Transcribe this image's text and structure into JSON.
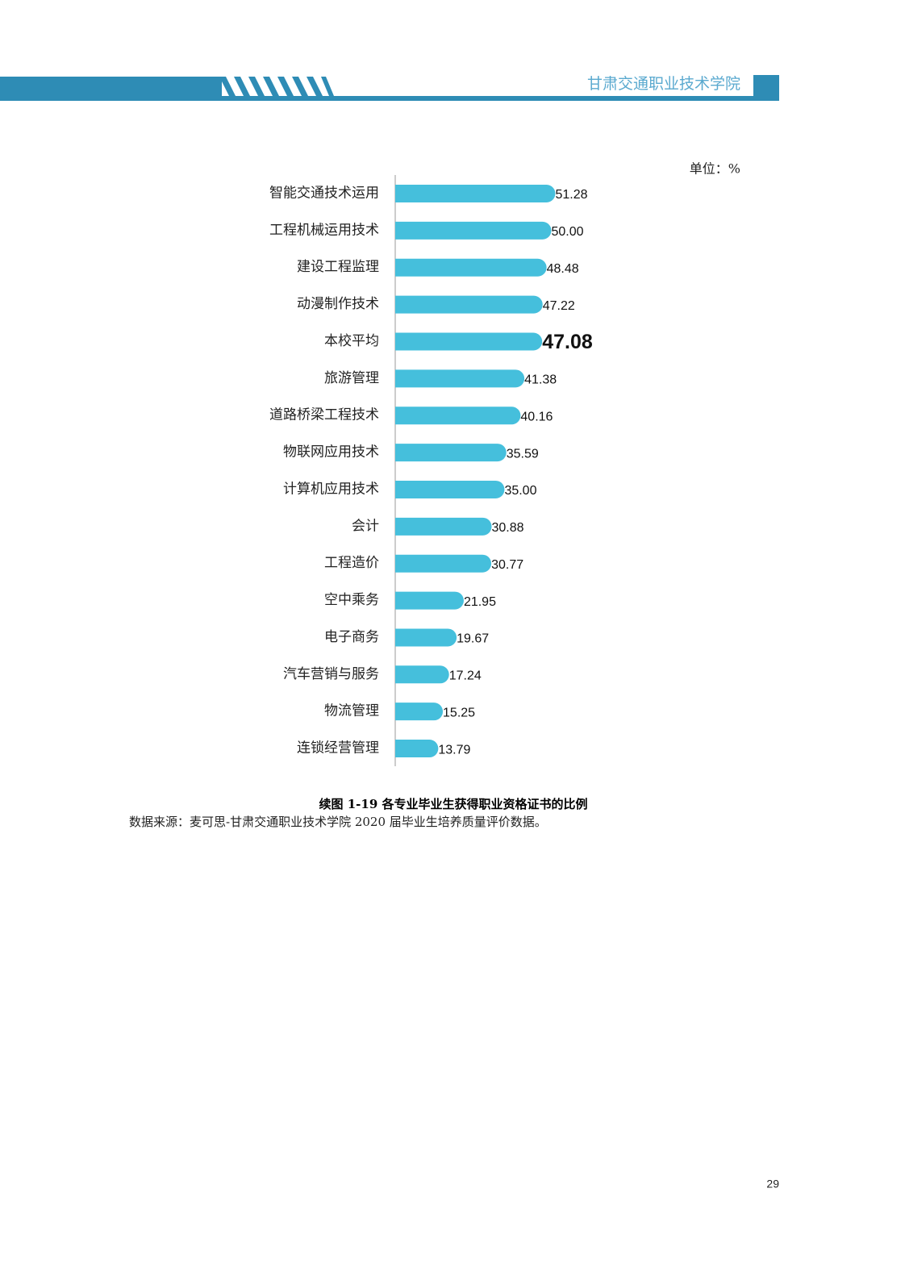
{
  "header": {
    "school": "甘肃交通职业技术学院"
  },
  "chart_data": {
    "type": "bar",
    "orientation": "horizontal",
    "unit_label": "单位：%",
    "categories": [
      "智能交通技术运用",
      "工程机械运用技术",
      "建设工程监理",
      "动漫制作技术",
      "本校平均",
      "旅游管理",
      "道路桥梁工程技术",
      "物联网应用技术",
      "计算机应用技术",
      "会计",
      "工程造价",
      "空中乘务",
      "电子商务",
      "汽车营销与服务",
      "物流管理",
      "连锁经营管理"
    ],
    "values": [
      51.28,
      50.0,
      48.48,
      47.22,
      47.08,
      41.38,
      40.16,
      35.59,
      35.0,
      30.88,
      30.77,
      21.95,
      19.67,
      17.24,
      15.25,
      13.79
    ],
    "value_labels": [
      "51.28",
      "50.00",
      "48.48",
      "47.22",
      "47.08",
      "41.38",
      "40.16",
      "35.59",
      "35.00",
      "30.88",
      "30.77",
      "21.95",
      "19.67",
      "17.24",
      "15.25",
      "13.79"
    ],
    "color": "#45bfdc",
    "emphasized_category": "本校平均"
  },
  "caption": "续图 1-19 各专业毕业生获得职业资格证书的比例",
  "source": "数据来源：麦可思-甘肃交通职业技术学院 2020 届毕业生培养质量评价数据。",
  "page_number": "29"
}
